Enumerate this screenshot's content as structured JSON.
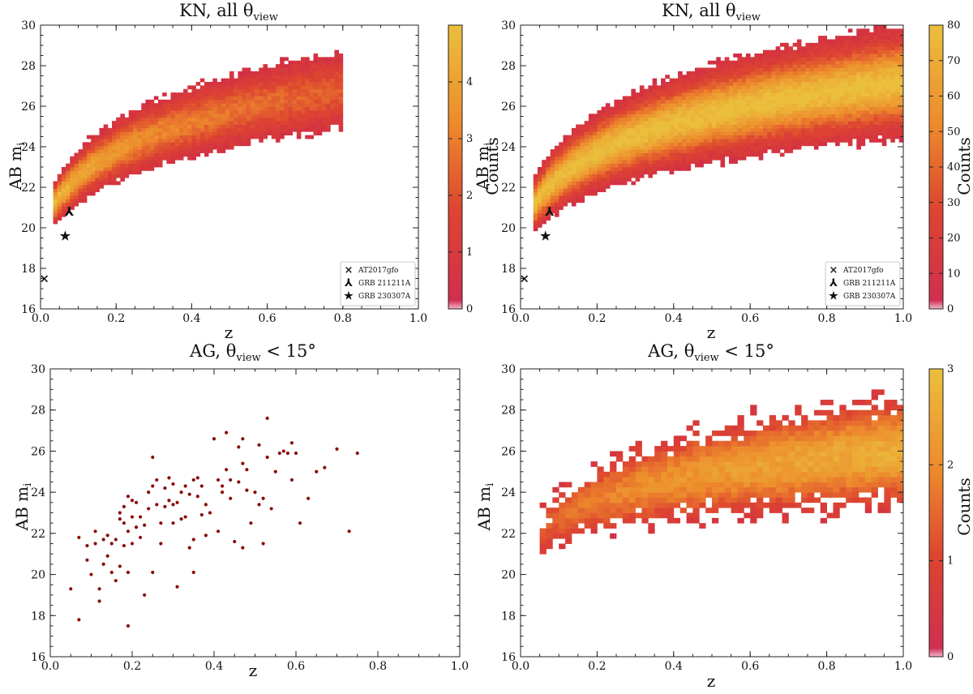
{
  "chart_data": [
    {
      "id": "kn-left",
      "type": "heatmap",
      "title": "KN, all θ",
      "title_sub": "view",
      "xlabel": "z",
      "ylabel": "AB m",
      "ylabel_sub": "i",
      "xlim": [
        0,
        1
      ],
      "ylim": [
        16,
        30
      ],
      "xticks": [
        "0.0",
        "0.2",
        "0.4",
        "0.6",
        "0.8",
        "1.0"
      ],
      "yticks": [
        "16",
        "18",
        "20",
        "22",
        "24",
        "26",
        "28",
        "30"
      ],
      "colorbar": {
        "label": "Counts",
        "range": [
          0,
          5
        ],
        "ticks": [
          "0",
          "1",
          "2",
          "3",
          "4"
        ]
      },
      "band": {
        "z_start": 0.03,
        "z_end": 0.8,
        "center_a": 21.0,
        "center_b": 26.8,
        "width": 1.3,
        "peak": 4.6
      },
      "legend": [
        {
          "marker": "×",
          "label": "AT2017gfo"
        },
        {
          "marker": "⅄",
          "label": "GRB 211211A"
        },
        {
          "marker": "★",
          "label": "GRB 230307A"
        }
      ],
      "events": [
        {
          "name": "AT2017gfo",
          "z": 0.01,
          "m": 17.5,
          "marker": "×"
        },
        {
          "name": "GRB 211211A",
          "z": 0.076,
          "m": 20.8,
          "marker": "⅄"
        },
        {
          "name": "GRB 230307A",
          "z": 0.065,
          "m": 19.6,
          "marker": "★"
        }
      ]
    },
    {
      "id": "kn-right",
      "type": "heatmap",
      "title": "KN, all θ",
      "title_sub": "view",
      "xlabel": "z",
      "ylabel": "AB m",
      "ylabel_sub": "i",
      "xlim": [
        0,
        1
      ],
      "ylim": [
        16,
        30
      ],
      "xticks": [
        "0.0",
        "0.2",
        "0.4",
        "0.6",
        "0.8",
        "1.0"
      ],
      "yticks": [
        "16",
        "18",
        "20",
        "22",
        "24",
        "26",
        "28",
        "30"
      ],
      "colorbar": {
        "label": "Counts",
        "range": [
          0,
          80
        ],
        "ticks": [
          "0",
          "10",
          "20",
          "30",
          "40",
          "50",
          "60",
          "70",
          "80"
        ]
      },
      "band": {
        "z_start": 0.03,
        "z_end": 1.0,
        "center_a": 21.0,
        "center_b": 27.2,
        "width": 1.6,
        "peak": 80
      },
      "legend": [
        {
          "marker": "×",
          "label": "AT2017gfo"
        },
        {
          "marker": "⅄",
          "label": "GRB 211211A"
        },
        {
          "marker": "★",
          "label": "GRB 230307A"
        }
      ],
      "events": [
        {
          "name": "AT2017gfo",
          "z": 0.01,
          "m": 17.5,
          "marker": "×"
        },
        {
          "name": "GRB 211211A",
          "z": 0.076,
          "m": 20.8,
          "marker": "⅄"
        },
        {
          "name": "GRB 230307A",
          "z": 0.065,
          "m": 19.6,
          "marker": "★"
        }
      ]
    },
    {
      "id": "ag-left",
      "type": "scatter",
      "title": "AG, θ",
      "title_sub": "view",
      "title_tail": " < 15°",
      "xlabel": "z",
      "ylabel": "AB m",
      "ylabel_sub": "i",
      "xlim": [
        0,
        1
      ],
      "ylim": [
        16,
        30
      ],
      "xticks": [
        "0.0",
        "0.2",
        "0.4",
        "0.6",
        "0.8",
        "1.0"
      ],
      "yticks": [
        "16",
        "18",
        "20",
        "22",
        "24",
        "26",
        "28",
        "30"
      ],
      "color": "#8b0d0d",
      "points": [
        [
          0.05,
          19.3
        ],
        [
          0.07,
          17.8
        ],
        [
          0.07,
          21.8
        ],
        [
          0.09,
          20.7
        ],
        [
          0.09,
          21.4
        ],
        [
          0.1,
          20.0
        ],
        [
          0.11,
          21.5
        ],
        [
          0.11,
          22.1
        ],
        [
          0.12,
          19.3
        ],
        [
          0.12,
          18.7
        ],
        [
          0.13,
          21.7
        ],
        [
          0.13,
          20.5
        ],
        [
          0.14,
          21.9
        ],
        [
          0.14,
          20.9
        ],
        [
          0.15,
          21.5
        ],
        [
          0.15,
          20.1
        ],
        [
          0.16,
          21.7
        ],
        [
          0.16,
          19.7
        ],
        [
          0.17,
          22.7
        ],
        [
          0.17,
          23.0
        ],
        [
          0.17,
          20.4
        ],
        [
          0.18,
          22.5
        ],
        [
          0.18,
          23.3
        ],
        [
          0.18,
          21.4
        ],
        [
          0.19,
          22.1
        ],
        [
          0.19,
          23.8
        ],
        [
          0.19,
          20.1
        ],
        [
          0.19,
          17.5
        ],
        [
          0.2,
          22.8
        ],
        [
          0.2,
          23.6
        ],
        [
          0.2,
          21.5
        ],
        [
          0.21,
          22.3
        ],
        [
          0.21,
          23.5
        ],
        [
          0.22,
          21.8
        ],
        [
          0.22,
          22.8
        ],
        [
          0.23,
          22.4
        ],
        [
          0.23,
          19.0
        ],
        [
          0.24,
          23.2
        ],
        [
          0.24,
          24.0
        ],
        [
          0.25,
          24.3
        ],
        [
          0.25,
          25.7
        ],
        [
          0.25,
          20.1
        ],
        [
          0.26,
          24.6
        ],
        [
          0.26,
          23.4
        ],
        [
          0.27,
          22.5
        ],
        [
          0.27,
          21.5
        ],
        [
          0.28,
          23.3
        ],
        [
          0.28,
          24.2
        ],
        [
          0.29,
          24.7
        ],
        [
          0.29,
          23.6
        ],
        [
          0.3,
          24.4
        ],
        [
          0.3,
          23.4
        ],
        [
          0.3,
          22.5
        ],
        [
          0.31,
          23.5
        ],
        [
          0.31,
          19.4
        ],
        [
          0.32,
          24.0
        ],
        [
          0.32,
          22.7
        ],
        [
          0.33,
          24.3
        ],
        [
          0.33,
          22.8
        ],
        [
          0.34,
          23.9
        ],
        [
          0.34,
          21.3
        ],
        [
          0.35,
          24.6
        ],
        [
          0.35,
          21.7
        ],
        [
          0.35,
          20.1
        ],
        [
          0.36,
          24.7
        ],
        [
          0.36,
          23.8
        ],
        [
          0.37,
          24.3
        ],
        [
          0.37,
          22.9
        ],
        [
          0.38,
          23.4
        ],
        [
          0.38,
          21.9
        ],
        [
          0.39,
          23.0
        ],
        [
          0.4,
          26.6
        ],
        [
          0.41,
          24.6
        ],
        [
          0.41,
          22.1
        ],
        [
          0.42,
          24.3
        ],
        [
          0.42,
          24.0
        ],
        [
          0.43,
          26.9
        ],
        [
          0.43,
          25.1
        ],
        [
          0.44,
          24.6
        ],
        [
          0.44,
          23.7
        ],
        [
          0.45,
          21.6
        ],
        [
          0.46,
          26.2
        ],
        [
          0.46,
          24.5
        ],
        [
          0.47,
          26.6
        ],
        [
          0.47,
          25.4
        ],
        [
          0.47,
          21.3
        ],
        [
          0.48,
          25.1
        ],
        [
          0.48,
          24.1
        ],
        [
          0.49,
          22.5
        ],
        [
          0.5,
          24.0
        ],
        [
          0.51,
          23.4
        ],
        [
          0.51,
          26.3
        ],
        [
          0.52,
          23.7
        ],
        [
          0.52,
          21.5
        ],
        [
          0.53,
          27.6
        ],
        [
          0.53,
          25.7
        ],
        [
          0.54,
          23.2
        ],
        [
          0.55,
          25.0
        ],
        [
          0.56,
          25.9
        ],
        [
          0.57,
          26.0
        ],
        [
          0.58,
          25.9
        ],
        [
          0.59,
          26.4
        ],
        [
          0.59,
          24.6
        ],
        [
          0.6,
          25.9
        ],
        [
          0.61,
          22.5
        ],
        [
          0.63,
          23.7
        ],
        [
          0.65,
          25.0
        ],
        [
          0.67,
          25.2
        ],
        [
          0.7,
          26.1
        ],
        [
          0.73,
          22.1
        ],
        [
          0.75,
          25.9
        ]
      ]
    },
    {
      "id": "ag-right",
      "type": "heatmap",
      "title": "AG, θ",
      "title_sub": "view",
      "title_tail": " < 15°",
      "xlabel": "z",
      "ylabel": "AB m",
      "ylabel_sub": "i",
      "xlim": [
        0,
        1
      ],
      "ylim": [
        16,
        30
      ],
      "xticks": [
        "0.0",
        "0.2",
        "0.4",
        "0.6",
        "0.8",
        "1.0"
      ],
      "yticks": [
        "16",
        "18",
        "20",
        "22",
        "24",
        "26",
        "28",
        "30"
      ],
      "colorbar": {
        "label": "Counts",
        "range": [
          0,
          3
        ],
        "ticks": [
          "0",
          "1",
          "2",
          "3"
        ]
      },
      "band": {
        "z_start": 0.05,
        "z_end": 1.0,
        "center_a": 22.0,
        "center_b": 26.0,
        "width": 2.0,
        "peak": 3
      }
    }
  ]
}
